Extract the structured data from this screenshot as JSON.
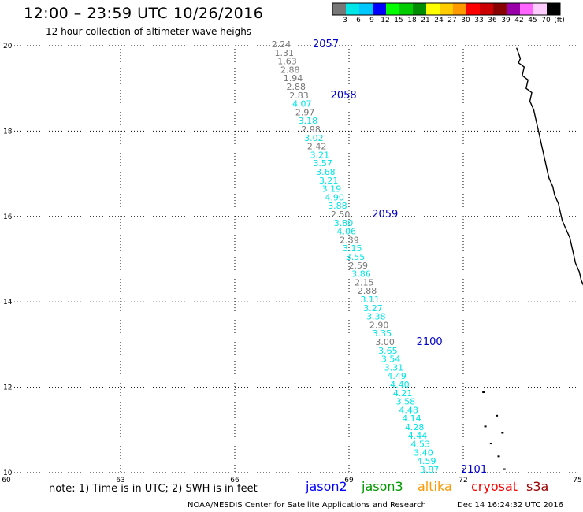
{
  "title": "12:00 – 23:59 UTC 10/26/2016",
  "subtitle": "12 hour collection of altimeter wave heighs",
  "color_scale": {
    "colors": [
      "#777777",
      "#00e6e6",
      "#00c8ff",
      "#0000ff",
      "#00ff00",
      "#00cc00",
      "#008c00",
      "#ffff00",
      "#ffcc00",
      "#ff9900",
      "#ff0000",
      "#cc0000",
      "#880000",
      "#9900aa",
      "#ff66ff",
      "#ffccff",
      "#000000"
    ],
    "labels": [
      "3",
      "6",
      "9",
      "12",
      "15",
      "18",
      "21",
      "24",
      "27",
      "30",
      "33",
      "36",
      "39",
      "42",
      "45",
      "70",
      "(ft)"
    ]
  },
  "axes": {
    "lat_ticks": [
      "20",
      "18",
      "16",
      "14",
      "12",
      "10"
    ],
    "lon_ticks": [
      "60",
      "63",
      "66",
      "69",
      "72",
      "75"
    ]
  },
  "pass_ids": [
    {
      "label": "2057",
      "color": "#0000cc"
    },
    {
      "label": "2058",
      "color": "#0000cc"
    },
    {
      "label": "2059",
      "color": "#0000cc"
    },
    {
      "label": "2100",
      "color": "#0000cc"
    },
    {
      "label": "2101",
      "color": "#0000cc"
    }
  ],
  "wave_heights": {
    "values": [
      "2.24",
      "1.31",
      "1.63",
      "2.88",
      "1.94",
      "2.88",
      "2.83",
      "4.07",
      "2.97",
      "3.18",
      "2.98",
      "3.02",
      "2.42",
      "3.21",
      "3.57",
      "3.68",
      "3.21",
      "3.19",
      "4.90",
      "3.88",
      "2.50",
      "3.80",
      "4.06",
      "2.39",
      "3.15",
      "3.55",
      "2.59",
      "3.86",
      "2.15",
      "2.88",
      "3.11",
      "3.27",
      "3.38",
      "2.90",
      "3.35",
      "3.00",
      "3.65",
      "3.54",
      "3.31",
      "4.49",
      "4.40",
      "4.21",
      "3.58",
      "4.48",
      "4.14",
      "4.28",
      "4.44",
      "4.53",
      "3.40",
      "4.59",
      "3.87"
    ],
    "colors": [
      "#777777",
      "#777777",
      "#777777",
      "#777777",
      "#777777",
      "#777777",
      "#777777",
      "#00e6e6",
      "#777777",
      "#00e6e6",
      "#777777",
      "#00e6e6",
      "#777777",
      "#00e6e6",
      "#00e6e6",
      "#00e6e6",
      "#00e6e6",
      "#00e6e6",
      "#00e6e6",
      "#00e6e6",
      "#777777",
      "#00e6e6",
      "#00e6e6",
      "#777777",
      "#00e6e6",
      "#00e6e6",
      "#777777",
      "#00e6e6",
      "#777777",
      "#777777",
      "#00e6e6",
      "#00e6e6",
      "#00e6e6",
      "#777777",
      "#00e6e6",
      "#777777",
      "#00e6e6",
      "#00e6e6",
      "#00e6e6",
      "#00e6e6",
      "#00e6e6",
      "#00e6e6",
      "#00e6e6",
      "#00e6e6",
      "#00e6e6",
      "#00e6e6",
      "#00e6e6",
      "#00e6e6",
      "#00e6e6",
      "#00e6e6",
      "#00e6e6"
    ]
  },
  "notes": "note:  1) Time is in UTC;  2) SWH is in feet",
  "satellites": [
    {
      "label": "jason2",
      "color": "#0000ff"
    },
    {
      "label": "jason3",
      "color": "#009900"
    },
    {
      "label": "altika",
      "color": "#ff9900"
    },
    {
      "label": "cryosat",
      "color": "#ff0000"
    },
    {
      "label": "s3a",
      "color": "#990000"
    }
  ],
  "credit": "NOAA/NESDIS Center for Satellite Applications and Research",
  "timestamp": "Dec 14 16:24:32 UTC 2016"
}
